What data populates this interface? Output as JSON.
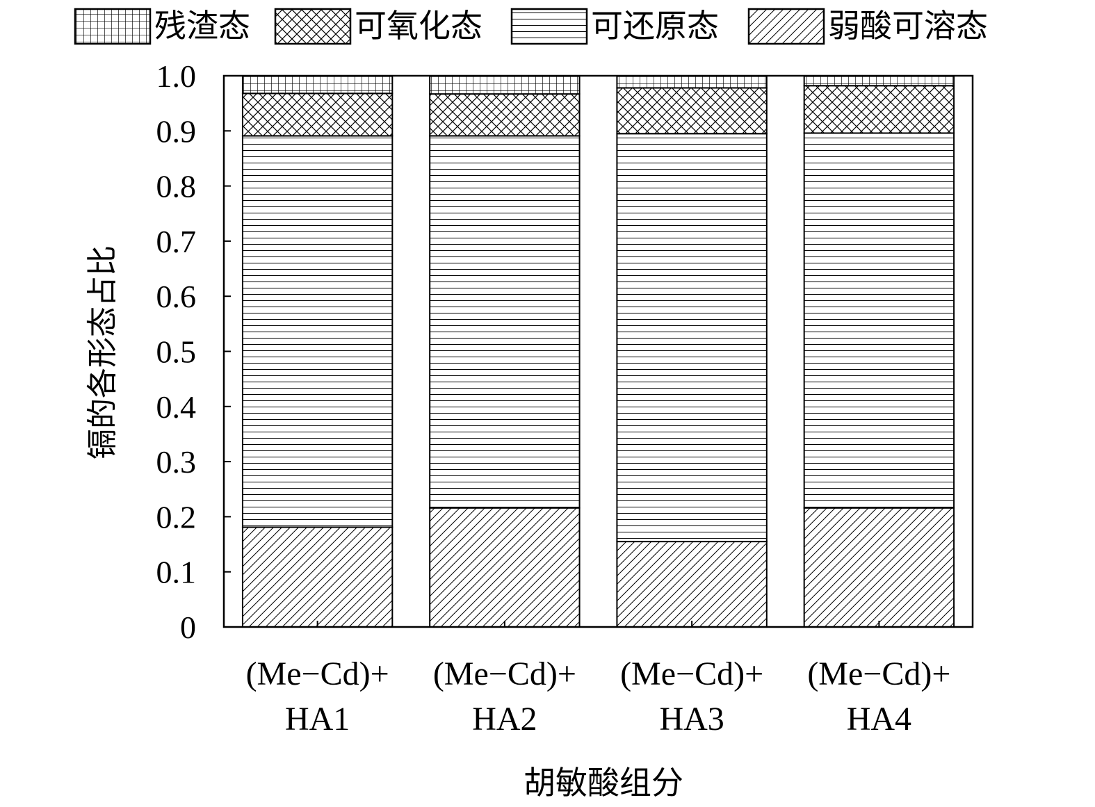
{
  "chart_data": {
    "type": "bar",
    "stacked": true,
    "normalized": true,
    "title": "",
    "xlabel": "胡敏酸组分",
    "ylabel": "镉的各形态占比",
    "ylim": [
      0,
      1.0
    ],
    "yticks": [
      0,
      0.1,
      0.2,
      0.3,
      0.4,
      0.5,
      0.6,
      0.7,
      0.8,
      0.9,
      1.0
    ],
    "ytick_labels": [
      "0",
      "0.1",
      "0.2",
      "0.3",
      "0.4",
      "0.5",
      "0.6",
      "0.7",
      "0.8",
      "0.9",
      "1.0"
    ],
    "grid": false,
    "legend_position": "top",
    "categories": [
      [
        "(Me−Cd)+",
        "HA1"
      ],
      [
        "(Me−Cd)+",
        "HA2"
      ],
      [
        "(Me−Cd)+",
        "HA3"
      ],
      [
        "(Me−Cd)+",
        "HA4"
      ]
    ],
    "series": [
      {
        "name": "弱酸可溶态",
        "pattern": "diagonal",
        "values": [
          0.181,
          0.216,
          0.155,
          0.216
        ]
      },
      {
        "name": "可还原态",
        "pattern": "horizontal",
        "values": [
          0.71,
          0.675,
          0.74,
          0.68
        ]
      },
      {
        "name": "可氧化态",
        "pattern": "crosshatch",
        "values": [
          0.077,
          0.076,
          0.083,
          0.086
        ]
      },
      {
        "name": "残渣态",
        "pattern": "grid",
        "values": [
          0.032,
          0.033,
          0.022,
          0.018
        ]
      }
    ],
    "legend_order": [
      "残渣态",
      "可氧化态",
      "可还原态",
      "弱酸可溶态"
    ]
  }
}
